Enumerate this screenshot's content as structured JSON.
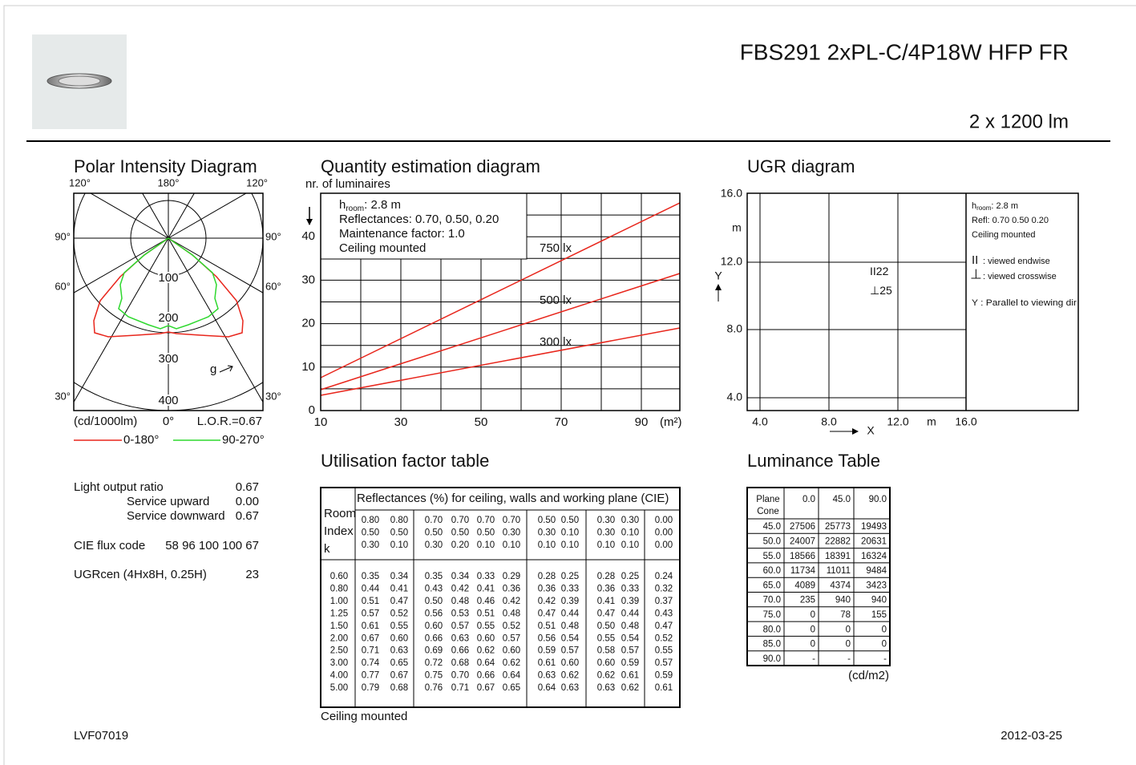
{
  "header": {
    "title": "FBS291 2xPL-C/4P18W HFP FR",
    "flux": "2 x 1200 lm"
  },
  "polar": {
    "title": "Polar Intensity Diagram",
    "angle_labels": {
      "top": [
        "120°",
        "180°",
        "120°"
      ],
      "left": [
        "90°",
        "60°",
        "30°"
      ],
      "right": [
        "90°",
        "60°",
        "30°"
      ]
    },
    "radial_labels": [
      "100",
      "200",
      "300",
      "400"
    ],
    "direction": "g",
    "unit": "(cd/1000lm)",
    "zero": "0°",
    "lor": "L.O.R.=0.67",
    "legend": [
      {
        "name": "0-180°",
        "color": "#e8261c"
      },
      {
        "name": "90-270°",
        "color": "#2fd82f"
      }
    ]
  },
  "quantity": {
    "title": "Quantity estimation diagram",
    "y_label": "nr. of luminaires",
    "yticks": [
      0,
      10,
      20,
      30,
      40
    ],
    "xticks": [
      10,
      30,
      50,
      70,
      90
    ],
    "x_unit": "(m²)",
    "info": {
      "h": "h",
      "h_sub": "room",
      "h_value": ": 2.8 m",
      "lines": [
        "Reflectances: 0.70, 0.50, 0.20",
        "Maintenance factor: 1.0",
        "Ceiling mounted"
      ]
    },
    "lines": [
      "750 lx",
      "500 lx",
      "300 lx"
    ]
  },
  "ugr": {
    "title": "UGR diagram",
    "yticks": [
      "16.0",
      "12.0",
      "8.0",
      "4.0"
    ],
    "y_unit": "m",
    "y_axis": "Y",
    "xticks": [
      "4.0",
      "8.0",
      "12.0",
      "16.0"
    ],
    "x_axis": "X",
    "x_unit": "m",
    "values": {
      "endwise": "22",
      "crosswise": "25"
    },
    "notes": {
      "h": "h",
      "h_sub": "room",
      "h_value": ": 2.8 m",
      "refl": "Refl: 0.70 0.50 0.20",
      "mount": "Ceiling mounted",
      "endwise_symbol": "II",
      "endwise": ": viewed endwise",
      "crosswise_symbol": "⊥",
      "crosswise": ": viewed crosswise",
      "y_note": "Y  : Parallel to viewing dir"
    }
  },
  "summary": [
    {
      "label": "Light output ratio",
      "value": "0.67"
    },
    {
      "label": "Service upward",
      "value": "0.00"
    },
    {
      "label": "Service downward",
      "value": "0.67"
    },
    {
      "label": "CIE flux code",
      "value": "58 96 100 100 67"
    },
    {
      "label": "UGRcen (4Hx8H, 0.25H)",
      "value": "23"
    }
  ],
  "utilisation": {
    "title": "Utilisation factor table",
    "header": "Reflectances (%) for ceiling, walls and working plane (CIE)",
    "room_index": [
      "Room",
      "Index",
      "k"
    ],
    "reflectances": [
      [
        "0.80",
        "0.80",
        "0.70",
        "0.70",
        "0.70",
        "0.70",
        "0.50",
        "0.50",
        "0.30",
        "0.30",
        "0.00"
      ],
      [
        "0.50",
        "0.50",
        "0.50",
        "0.50",
        "0.50",
        "0.30",
        "0.30",
        "0.10",
        "0.30",
        "0.10",
        "0.00"
      ],
      [
        "0.30",
        "0.10",
        "0.30",
        "0.20",
        "0.10",
        "0.10",
        "0.10",
        "0.10",
        "0.10",
        "0.10",
        "0.00"
      ]
    ],
    "rows": [
      {
        "k": "0.60",
        "values": [
          "0.35",
          "0.34",
          "0.35",
          "0.34",
          "0.33",
          "0.29",
          "0.28",
          "0.25",
          "0.28",
          "0.25",
          "0.24"
        ]
      },
      {
        "k": "0.80",
        "values": [
          "0.44",
          "0.41",
          "0.43",
          "0.42",
          "0.41",
          "0.36",
          "0.36",
          "0.33",
          "0.36",
          "0.33",
          "0.32"
        ]
      },
      {
        "k": "1.00",
        "values": [
          "0.51",
          "0.47",
          "0.50",
          "0.48",
          "0.46",
          "0.42",
          "0.42",
          "0.39",
          "0.41",
          "0.39",
          "0.37"
        ]
      },
      {
        "k": "1.25",
        "values": [
          "0.57",
          "0.52",
          "0.56",
          "0.53",
          "0.51",
          "0.48",
          "0.47",
          "0.44",
          "0.47",
          "0.44",
          "0.43"
        ]
      },
      {
        "k": "1.50",
        "values": [
          "0.61",
          "0.55",
          "0.60",
          "0.57",
          "0.55",
          "0.52",
          "0.51",
          "0.48",
          "0.50",
          "0.48",
          "0.47"
        ]
      },
      {
        "k": "2.00",
        "values": [
          "0.67",
          "0.60",
          "0.66",
          "0.63",
          "0.60",
          "0.57",
          "0.56",
          "0.54",
          "0.55",
          "0.54",
          "0.52"
        ]
      },
      {
        "k": "2.50",
        "values": [
          "0.71",
          "0.63",
          "0.69",
          "0.66",
          "0.62",
          "0.60",
          "0.59",
          "0.57",
          "0.58",
          "0.57",
          "0.55"
        ]
      },
      {
        "k": "3.00",
        "values": [
          "0.74",
          "0.65",
          "0.72",
          "0.68",
          "0.64",
          "0.62",
          "0.61",
          "0.60",
          "0.60",
          "0.59",
          "0.57"
        ]
      },
      {
        "k": "4.00",
        "values": [
          "0.77",
          "0.67",
          "0.75",
          "0.70",
          "0.66",
          "0.64",
          "0.63",
          "0.62",
          "0.62",
          "0.61",
          "0.59"
        ]
      },
      {
        "k": "5.00",
        "values": [
          "0.79",
          "0.68",
          "0.76",
          "0.71",
          "0.67",
          "0.65",
          "0.64",
          "0.63",
          "0.63",
          "0.62",
          "0.61"
        ]
      }
    ],
    "note": "Ceiling mounted"
  },
  "luminance": {
    "title": "Luminance Table",
    "corner": [
      "Plane",
      "Cone"
    ],
    "columns": [
      "0.0",
      "45.0",
      "90.0"
    ],
    "rows": [
      [
        "45.0",
        "27506",
        "25773",
        "19493"
      ],
      [
        "50.0",
        "24007",
        "22882",
        "20631"
      ],
      [
        "55.0",
        "18566",
        "18391",
        "16324"
      ],
      [
        "60.0",
        "11734",
        "11011",
        "9484"
      ],
      [
        "65.0",
        "4089",
        "4374",
        "3423"
      ],
      [
        "70.0",
        "235",
        "940",
        "940"
      ],
      [
        "75.0",
        "0",
        "78",
        "155"
      ],
      [
        "80.0",
        "0",
        "0",
        "0"
      ],
      [
        "85.0",
        "0",
        "0",
        "0"
      ],
      [
        "90.0",
        "-",
        "-",
        "-"
      ]
    ],
    "unit": "(cd/m2)"
  },
  "footer": {
    "code": "LVF07019",
    "date": "2012-03-25"
  }
}
